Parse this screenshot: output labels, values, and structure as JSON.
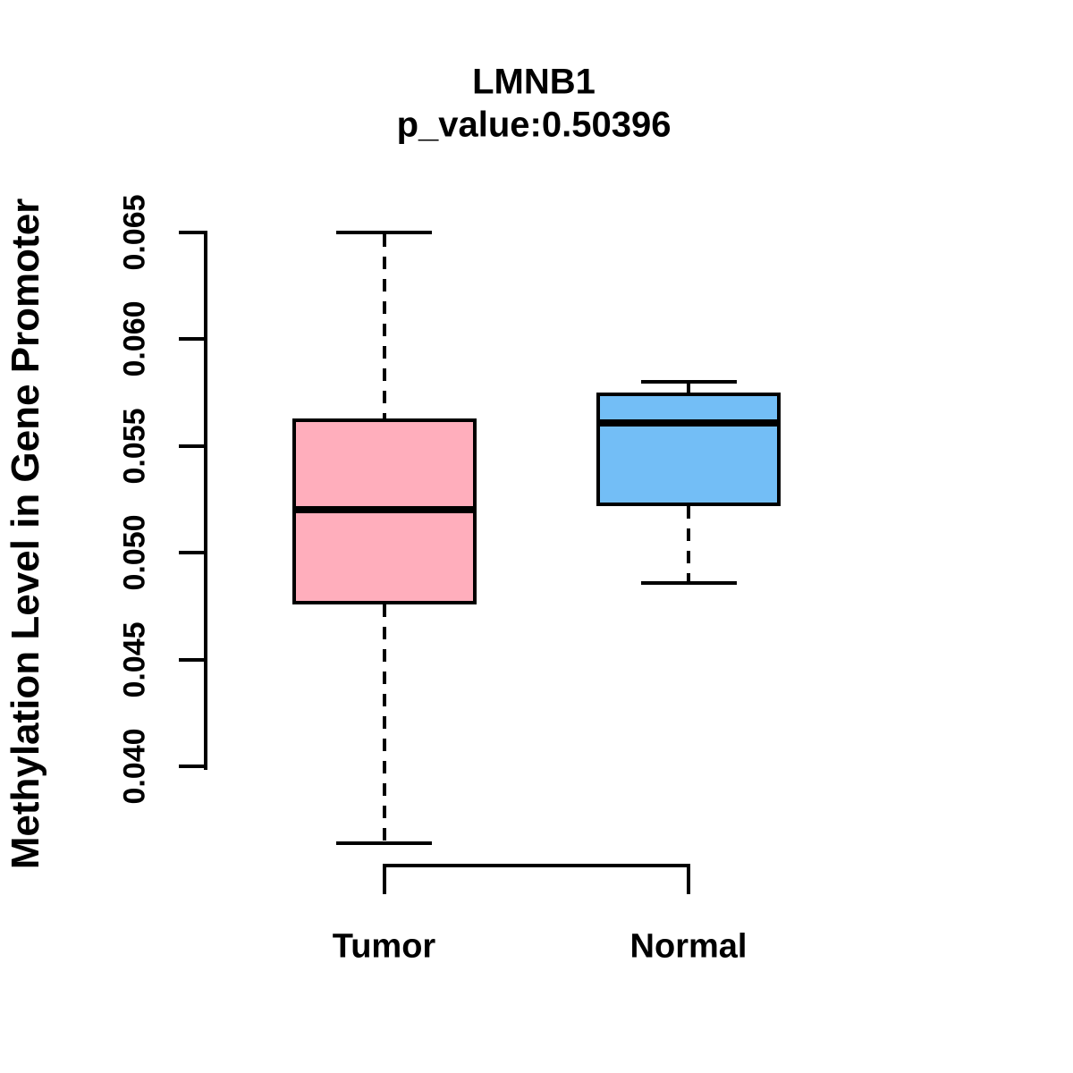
{
  "chart_data": {
    "type": "boxplot",
    "title": "LMNB1",
    "subtitle": "p_value:0.50396",
    "ylabel": "Methylation Level in Gene Promoter",
    "xlabel": "",
    "categories": [
      "Tumor",
      "Normal"
    ],
    "y_ticks": [
      "0.040",
      "0.045",
      "0.050",
      "0.055",
      "0.060",
      "0.065"
    ],
    "y_tick_values": [
      0.04,
      0.045,
      0.05,
      0.055,
      0.06,
      0.065
    ],
    "ylim": [
      0.036,
      0.066
    ],
    "grid": false,
    "legend": "none",
    "whisker_style": "dashed",
    "line_color": "#000000",
    "background_color": "#ffffff",
    "series": [
      {
        "name": "Tumor",
        "fill_color": "#FFAEBC",
        "lower_whisker": 0.0364,
        "q1": 0.0476,
        "median": 0.052,
        "q3": 0.0563,
        "upper_whisker": 0.065
      },
      {
        "name": "Normal",
        "fill_color": "#73BEF6",
        "lower_whisker": 0.0486,
        "q1": 0.0522,
        "median": 0.0561,
        "q3": 0.0575,
        "upper_whisker": 0.058
      }
    ]
  }
}
